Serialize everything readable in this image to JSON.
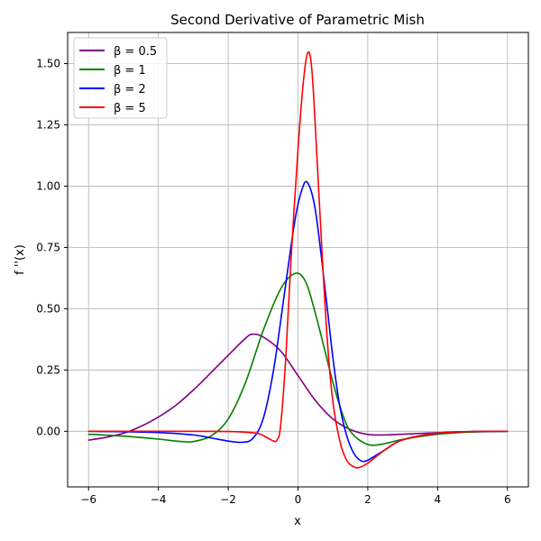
{
  "chart_data": {
    "type": "line",
    "title": "Second Derivative of Parametric Mish",
    "xlabel": "x",
    "ylabel": "f ''(x)",
    "xlim": [
      -6.6,
      6.6
    ],
    "ylim": [
      -0.227,
      1.627
    ],
    "xticks": [
      -6,
      -4,
      -2,
      0,
      2,
      4,
      6
    ],
    "xtick_labels": [
      "−6",
      "−4",
      "−2",
      "0",
      "2",
      "4",
      "6"
    ],
    "yticks": [
      0.0,
      0.25,
      0.5,
      0.75,
      1.0,
      1.25,
      1.5
    ],
    "ytick_labels": [
      "0.00",
      "0.25",
      "0.50",
      "0.75",
      "1.00",
      "1.25",
      "1.50"
    ],
    "grid": true,
    "legend_position": "top-left",
    "series": [
      {
        "name": "β = 0.5",
        "color": "#800080",
        "points": [
          [
            -6,
            -0.036
          ],
          [
            -5.5,
            -0.025
          ],
          [
            -5,
            -0.008
          ],
          [
            -4.5,
            0.02
          ],
          [
            -4,
            0.058
          ],
          [
            -3.5,
            0.106
          ],
          [
            -3,
            0.168
          ],
          [
            -2.5,
            0.238
          ],
          [
            -2,
            0.31
          ],
          [
            -1.5,
            0.38
          ],
          [
            -1.3,
            0.396
          ],
          [
            -1,
            0.385
          ],
          [
            -0.5,
            0.328
          ],
          [
            0,
            0.227
          ],
          [
            0.5,
            0.125
          ],
          [
            1,
            0.05
          ],
          [
            1.5,
            0.007
          ],
          [
            2,
            -0.013
          ],
          [
            2.5,
            -0.015
          ],
          [
            3,
            -0.012
          ],
          [
            4,
            -0.006
          ],
          [
            5,
            -0.002
          ],
          [
            6,
            0
          ]
        ]
      },
      {
        "name": "β = 1",
        "color": "#008000",
        "points": [
          [
            -6,
            -0.012
          ],
          [
            -5,
            -0.02
          ],
          [
            -4,
            -0.032
          ],
          [
            -3.5,
            -0.04
          ],
          [
            -3.2,
            -0.043
          ],
          [
            -3,
            -0.042
          ],
          [
            -2.5,
            -0.02
          ],
          [
            -2,
            0.05
          ],
          [
            -1.5,
            0.2
          ],
          [
            -1,
            0.41
          ],
          [
            -0.5,
            0.58
          ],
          [
            -0.1,
            0.643
          ],
          [
            0.2,
            0.615
          ],
          [
            0.5,
            0.48
          ],
          [
            1,
            0.2
          ],
          [
            1.3,
            0.06
          ],
          [
            1.5,
            0.0
          ],
          [
            1.8,
            -0.04
          ],
          [
            2.1,
            -0.057
          ],
          [
            2.5,
            -0.05
          ],
          [
            3,
            -0.033
          ],
          [
            4,
            -0.012
          ],
          [
            5,
            -0.003
          ],
          [
            6,
            0
          ]
        ]
      },
      {
        "name": "β = 2",
        "color": "#0000ff",
        "points": [
          [
            -6,
            0
          ],
          [
            -4,
            -0.005
          ],
          [
            -3,
            -0.015
          ],
          [
            -2.5,
            -0.027
          ],
          [
            -2,
            -0.04
          ],
          [
            -1.6,
            -0.045
          ],
          [
            -1.3,
            -0.03
          ],
          [
            -1,
            0.05
          ],
          [
            -0.7,
            0.25
          ],
          [
            -0.4,
            0.55
          ],
          [
            -0.1,
            0.85
          ],
          [
            0.1,
            0.98
          ],
          [
            0.27,
            1.015
          ],
          [
            0.5,
            0.9
          ],
          [
            0.8,
            0.55
          ],
          [
            1,
            0.3
          ],
          [
            1.2,
            0.1
          ],
          [
            1.4,
            -0.02
          ],
          [
            1.6,
            -0.09
          ],
          [
            1.8,
            -0.12
          ],
          [
            2,
            -0.118
          ],
          [
            2.5,
            -0.075
          ],
          [
            3,
            -0.035
          ],
          [
            4,
            -0.008
          ],
          [
            5,
            -0.001
          ],
          [
            6,
            0
          ]
        ]
      },
      {
        "name": "β = 5",
        "color": "#ff0000",
        "points": [
          [
            -6,
            0
          ],
          [
            -4,
            0
          ],
          [
            -2,
            -0.001
          ],
          [
            -1.2,
            -0.008
          ],
          [
            -0.9,
            -0.025
          ],
          [
            -0.7,
            -0.04
          ],
          [
            -0.6,
            -0.035
          ],
          [
            -0.5,
            0.02
          ],
          [
            -0.35,
            0.3
          ],
          [
            -0.2,
            0.7
          ],
          [
            0,
            1.15
          ],
          [
            0.15,
            1.42
          ],
          [
            0.28,
            1.545
          ],
          [
            0.4,
            1.47
          ],
          [
            0.55,
            1.1
          ],
          [
            0.7,
            0.7
          ],
          [
            0.85,
            0.35
          ],
          [
            1,
            0.12
          ],
          [
            1.2,
            -0.04
          ],
          [
            1.4,
            -0.12
          ],
          [
            1.6,
            -0.145
          ],
          [
            1.75,
            -0.148
          ],
          [
            2,
            -0.13
          ],
          [
            2.5,
            -0.075
          ],
          [
            3,
            -0.035
          ],
          [
            4,
            -0.008
          ],
          [
            5,
            -0.001
          ],
          [
            6,
            0
          ]
        ]
      }
    ]
  }
}
